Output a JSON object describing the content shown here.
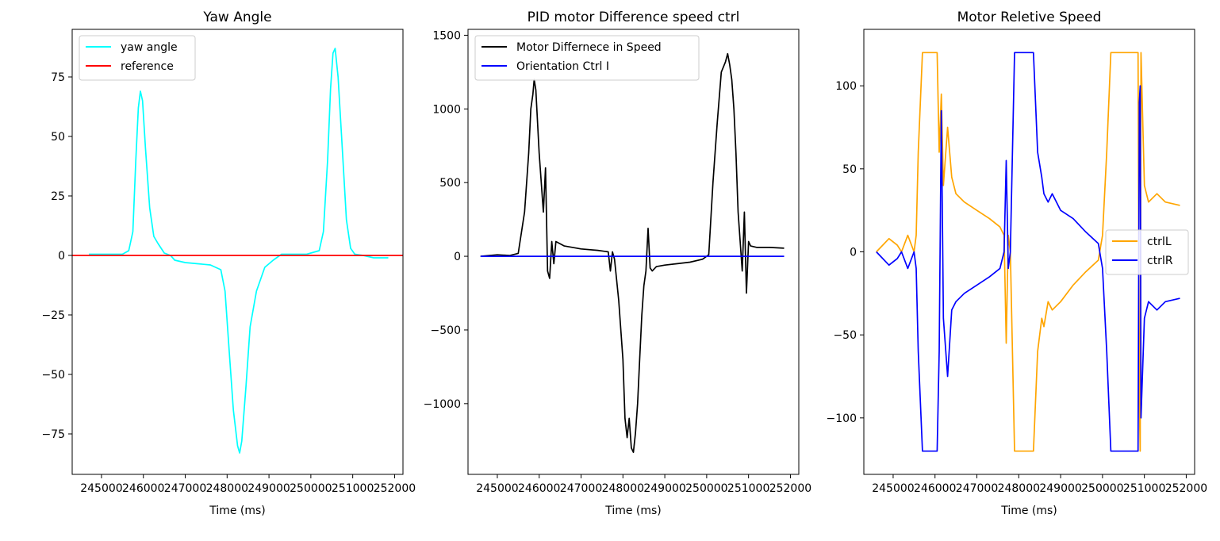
{
  "chart_data": [
    {
      "type": "line",
      "title": "Yaw Angle",
      "xlabel": "Time (ms)",
      "ylabel": "",
      "xlim": [
        244300,
        252200
      ],
      "ylim": [
        -92,
        95
      ],
      "xticks": [
        245000,
        246000,
        247000,
        248000,
        249000,
        250000,
        251000,
        252000
      ],
      "xtick_labels": [
        "245000",
        "246000",
        "247000",
        "248000",
        "249000",
        "250000",
        "251000",
        "252000"
      ],
      "yticks": [
        -75,
        -50,
        -25,
        0,
        25,
        50,
        75
      ],
      "ytick_labels": [
        "−75",
        "−50",
        "−25",
        "0",
        "25",
        "50",
        "75"
      ],
      "legend": {
        "position": "upper-left"
      },
      "series": [
        {
          "name": "yaw angle",
          "color": "#00ffff",
          "x": [
            244700,
            245200,
            245500,
            245650,
            245750,
            245820,
            245880,
            245930,
            245980,
            246050,
            246150,
            246250,
            246350,
            246500,
            246650,
            246750,
            247000,
            247300,
            247600,
            247850,
            247950,
            248050,
            248150,
            248250,
            248300,
            248350,
            248450,
            248550,
            248700,
            248900,
            249100,
            249300,
            249600,
            249900,
            250200,
            250300,
            250400,
            250470,
            250530,
            250580,
            250650,
            250750,
            250850,
            250950,
            251050,
            251250,
            251500,
            251850
          ],
          "y": [
            0.5,
            0.5,
            0.5,
            2,
            10,
            40,
            62,
            69,
            65,
            45,
            20,
            8,
            5,
            1,
            0,
            -2,
            -3,
            -3.5,
            -4,
            -6,
            -15,
            -40,
            -65,
            -80,
            -83,
            -78,
            -55,
            -30,
            -15,
            -5,
            -2,
            0.5,
            0.5,
            0.5,
            2,
            10,
            40,
            70,
            85,
            87,
            75,
            45,
            15,
            3,
            0.5,
            0,
            -1,
            -1
          ]
        },
        {
          "name": "reference",
          "color": "#ff0000",
          "x": [
            244300,
            252200
          ],
          "y": [
            0,
            0
          ]
        }
      ]
    },
    {
      "type": "line",
      "title": "PID motor Difference speed ctrl",
      "xlabel": "Time (ms)",
      "ylabel": "",
      "xlim": [
        244300,
        252200
      ],
      "ylim": [
        -1480,
        1540
      ],
      "xticks": [
        245000,
        246000,
        247000,
        248000,
        249000,
        250000,
        251000,
        252000
      ],
      "xtick_labels": [
        "245000",
        "246000",
        "247000",
        "248000",
        "249000",
        "250000",
        "251000",
        "252000"
      ],
      "yticks": [
        -1000,
        -500,
        0,
        500,
        1000,
        1500
      ],
      "ytick_labels": [
        "−1000",
        "−500",
        "0",
        "500",
        "1000",
        "1500"
      ],
      "legend": {
        "position": "upper-left"
      },
      "series": [
        {
          "name": "Motor Differnece in Speed",
          "color": "#000000",
          "x": [
            244600,
            245000,
            245300,
            245500,
            245650,
            245750,
            245800,
            245850,
            245880,
            245920,
            246000,
            246100,
            246150,
            246200,
            246250,
            246300,
            246350,
            246400,
            246600,
            247000,
            247400,
            247650,
            247700,
            247750,
            247800,
            247900,
            248000,
            248050,
            248100,
            248150,
            248200,
            248250,
            248300,
            248350,
            248400,
            248450,
            248500,
            248550,
            248600,
            248650,
            248700,
            248800,
            249000,
            249300,
            249600,
            249900,
            250050,
            250150,
            250250,
            250350,
            250450,
            250500,
            250550,
            250600,
            250650,
            250700,
            250750,
            250800,
            250850,
            250900,
            250950,
            251000,
            251050,
            251200,
            251500,
            251850
          ],
          "y": [
            0,
            10,
            5,
            20,
            300,
            700,
            1000,
            1100,
            1200,
            1130,
            700,
            300,
            600,
            -100,
            -150,
            100,
            -50,
            100,
            70,
            50,
            40,
            30,
            -100,
            30,
            -20,
            -300,
            -700,
            -1100,
            -1230,
            -1100,
            -1300,
            -1330,
            -1200,
            -1000,
            -700,
            -400,
            -200,
            -100,
            190,
            -80,
            -100,
            -70,
            -60,
            -50,
            -40,
            -20,
            10,
            500,
            900,
            1250,
            1320,
            1375,
            1300,
            1200,
            1000,
            700,
            300,
            100,
            -100,
            300,
            -250,
            100,
            70,
            60,
            60,
            55
          ]
        },
        {
          "name": "Orientation Ctrl I",
          "color": "#0000ff",
          "x": [
            244600,
            251850
          ],
          "y": [
            0,
            0
          ]
        }
      ]
    },
    {
      "type": "line",
      "title": "Motor Reletive Speed",
      "xlabel": "Time (ms)",
      "ylabel": "",
      "xlim": [
        244300,
        252200
      ],
      "ylim": [
        -134,
        134
      ],
      "xticks": [
        245000,
        246000,
        247000,
        248000,
        249000,
        250000,
        251000,
        252000
      ],
      "xtick_labels": [
        "245000",
        "246000",
        "247000",
        "248000",
        "249000",
        "250000",
        "251000",
        "252000"
      ],
      "yticks": [
        -100,
        -50,
        0,
        50,
        100
      ],
      "ytick_labels": [
        "−100",
        "−50",
        "0",
        "50",
        "100"
      ],
      "legend": {
        "position": "center-right"
      },
      "series": [
        {
          "name": "ctrlL",
          "color": "#ffa500",
          "x": [
            244600,
            244900,
            245100,
            245200,
            245350,
            245500,
            245550,
            245600,
            245700,
            246050,
            246100,
            246150,
            246200,
            246300,
            246400,
            246500,
            246700,
            247000,
            247300,
            247550,
            247650,
            247700,
            247750,
            247800,
            247900,
            248350,
            248450,
            248550,
            248600,
            248700,
            248800,
            249000,
            249300,
            249600,
            249900,
            250000,
            250100,
            250200,
            250300,
            250850,
            250880,
            250900,
            250920,
            251000,
            251100,
            251300,
            251500,
            251850
          ],
          "y": [
            0,
            8,
            4,
            0,
            10,
            0,
            10,
            60,
            120,
            120,
            60,
            95,
            40,
            75,
            45,
            35,
            30,
            25,
            20,
            15,
            10,
            -55,
            10,
            0,
            -120,
            -120,
            -60,
            -40,
            -45,
            -30,
            -35,
            -30,
            -20,
            -12,
            -5,
            10,
            60,
            120,
            120,
            120,
            -90,
            -120,
            120,
            40,
            30,
            35,
            30,
            28
          ]
        },
        {
          "name": "ctrlR",
          "color": "#0000ff",
          "x": [
            244600,
            244900,
            245100,
            245200,
            245350,
            245500,
            245550,
            245600,
            245700,
            246050,
            246100,
            246150,
            246200,
            246300,
            246400,
            246500,
            246700,
            247000,
            247300,
            247550,
            247650,
            247700,
            247750,
            247800,
            247900,
            248350,
            248450,
            248550,
            248600,
            248700,
            248800,
            249000,
            249300,
            249600,
            249900,
            250000,
            250100,
            250200,
            250300,
            250850,
            250880,
            250900,
            250920,
            251000,
            251100,
            251300,
            251500,
            251850
          ],
          "y": [
            0,
            -8,
            -4,
            0,
            -10,
            0,
            -10,
            -60,
            -120,
            -120,
            -60,
            85,
            -40,
            -75,
            -35,
            -30,
            -25,
            -20,
            -15,
            -10,
            0,
            55,
            -10,
            0,
            120,
            120,
            60,
            45,
            35,
            30,
            35,
            25,
            20,
            12,
            5,
            -10,
            -60,
            -120,
            -120,
            -120,
            90,
            100,
            -100,
            -40,
            -30,
            -35,
            -30,
            -28
          ]
        }
      ]
    }
  ]
}
